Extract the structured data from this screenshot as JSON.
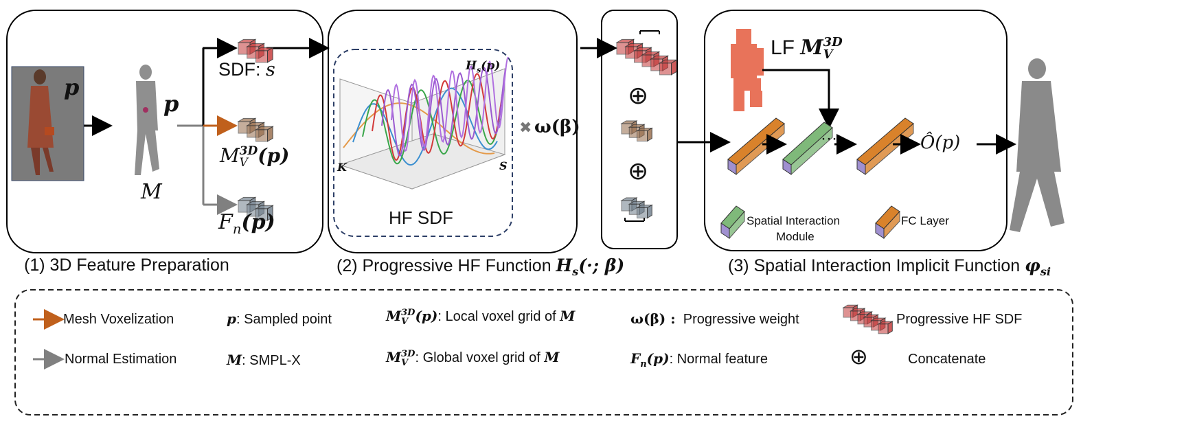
{
  "panels": {
    "feature_prep": {
      "point_label": "p",
      "mesh_label": "M",
      "sdf_label": "SDF: ",
      "sdf_var": "s",
      "voxel_label": {
        "base": "M",
        "sub": "V",
        "sup": "3D",
        "arg": "(p)"
      },
      "normal_label": {
        "base": "F",
        "sub": "n",
        "arg": "(p)"
      },
      "caption": "(1) 3D Feature Preparation"
    },
    "hf_function": {
      "plot_label": {
        "base": "H",
        "sub": "s",
        "arg": "(p)"
      },
      "axis_k": "K",
      "axis_s": "S",
      "inner_title": "HF SDF",
      "weight_symbol": "✖",
      "weight_label": "ω(β)",
      "caption_text": "(2) Progressive HF Function ",
      "caption_math": {
        "base": "H",
        "sub": "s",
        "arg": "(·; β)"
      }
    },
    "concat": {
      "op1": "⊕",
      "op2": "⊕"
    },
    "implicit_function": {
      "lf_label": "LF ",
      "lf_math": {
        "base": "M",
        "sub": "V",
        "sup": "3D"
      },
      "ellipsis": "···",
      "output_label": "Ô(p)",
      "legend_sim": "Spatial Interaction",
      "legend_sim2": "Module",
      "legend_fc": "FC Layer",
      "caption_text": "(3) Spatial Interaction Implicit Function ",
      "caption_math": {
        "base": "φ",
        "sub": "si"
      }
    }
  },
  "legend": {
    "mesh_voxelization": "Mesh Voxelization",
    "normal_estimation": "Normal Estimation",
    "p_sym": "p",
    "p_desc": ":  Sampled point",
    "m_sym": "M",
    "m_desc": ":  SMPL-X",
    "local_sym": {
      "base": "M",
      "sub": "V",
      "sup": "3D",
      "arg": "(p)"
    },
    "local_desc": ": Local voxel grid of ",
    "global_sym": {
      "base": "M",
      "sub": "V",
      "sup": "3D"
    },
    "global_desc": ": Global voxel grid of ",
    "of_m": "M",
    "weight_sym": "ω(β) :",
    "weight_desc": "Progressive weight",
    "normal_sym": {
      "base": "F",
      "sub": "n",
      "arg": "(p)"
    },
    "normal_desc": ":  Normal feature",
    "hf_sdf_desc": "Progressive HF SDF",
    "concat_sym": "⊕",
    "concat_desc": "Concatenate"
  },
  "colors": {
    "orange_arrow": "#c0601c",
    "gray_arrow": "#808080",
    "sdf_cube": "#c94a4a",
    "voxel_cube": "#a07a5c",
    "normal_cube": "#7d8a96",
    "fc_layer": "#d9822b",
    "sim_module": "#7fb97a",
    "lf_voxel": "#e8735a",
    "dashed_border": "#2c3e66"
  }
}
